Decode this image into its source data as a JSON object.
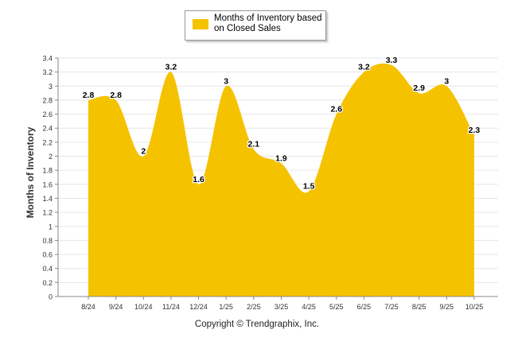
{
  "chart_data": {
    "type": "area",
    "title": "",
    "xlabel": "",
    "ylabel": "Months of Inventory",
    "categories": [
      "8/24",
      "9/24",
      "10/24",
      "11/24",
      "12/24",
      "1/25",
      "2/25",
      "3/25",
      "4/25",
      "5/25",
      "6/25",
      "7/25",
      "8/25",
      "9/25",
      "10/25"
    ],
    "series": [
      {
        "name": "Months of Inventory based on Closed Sales",
        "values": [
          2.8,
          2.8,
          2,
          3.2,
          1.6,
          3,
          2.1,
          1.9,
          1.5,
          2.6,
          3.2,
          3.3,
          2.9,
          3,
          2.3
        ],
        "color": "#F5C200"
      }
    ],
    "ylim": [
      0,
      3.4
    ],
    "yticks": [
      "0",
      "0.2",
      "0.4",
      "0.6",
      "0.8",
      "1",
      "1.2",
      "1.4",
      "1.6",
      "1.8",
      "2",
      "2.2",
      "2.4",
      "2.6",
      "2.8",
      "3",
      "3.2",
      "3.4"
    ],
    "grid": true,
    "legend_position": "top-center"
  },
  "legend": {
    "label_line1": "Months of Inventory based",
    "label_line2": "on Closed Sales"
  },
  "footer": {
    "copyright": "Copyright © Trendgraphix, Inc."
  }
}
